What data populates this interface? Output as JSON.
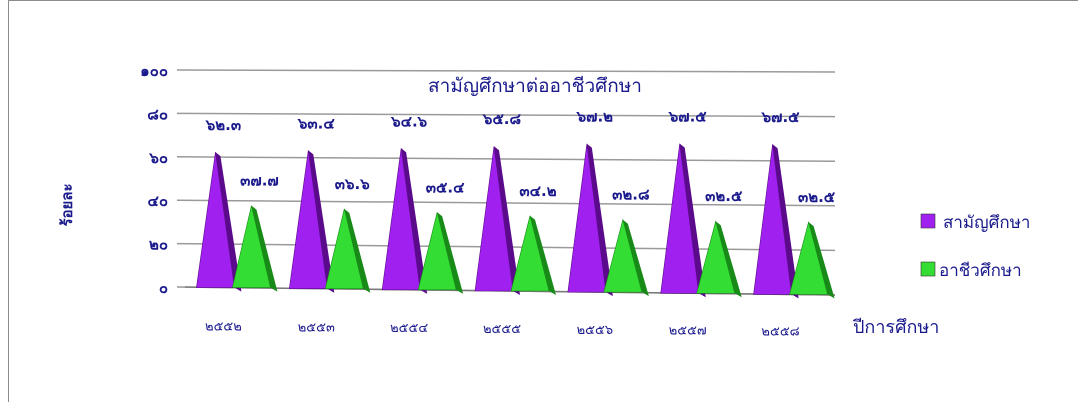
{
  "chart_data": {
    "type": "bar",
    "title": "สามัญศึกษาต่ออาชีวศึกษา",
    "xlabel": "ปีการศึกษา",
    "ylabel": "ร้อยละ",
    "ylim": [
      0,
      100
    ],
    "yticks": [
      {
        "value": 0,
        "label": "๐"
      },
      {
        "value": 20,
        "label": "๒๐"
      },
      {
        "value": 40,
        "label": "๔๐"
      },
      {
        "value": 60,
        "label": "๖๐"
      },
      {
        "value": 80,
        "label": "๘๐"
      },
      {
        "value": 100,
        "label": "๑๐๐"
      }
    ],
    "categories": [
      "๒๕๕๒",
      "๒๕๕๓",
      "๒๕๕๔",
      "๒๕๕๕",
      "๒๕๕๖",
      "๒๕๕๗",
      "๒๕๕๘"
    ],
    "series": [
      {
        "name": "สามัญศึกษา",
        "color": "#a020f0",
        "shade": "#5a0a8a",
        "values": [
          62.3,
          63.4,
          64.6,
          65.8,
          67.2,
          67.5,
          67.5
        ],
        "labels": [
          "๖๒.๓",
          "๖๓.๔",
          "๖๔.๖",
          "๖๕.๘",
          "๖๗.๒",
          "๖๗.๕",
          "๖๗.๕"
        ]
      },
      {
        "name": "อาชีวศึกษา",
        "color": "#33dd33",
        "shade": "#178a17",
        "values": [
          37.7,
          36.6,
          35.4,
          34.2,
          32.8,
          32.5,
          32.5
        ],
        "labels": [
          "๓๗.๗",
          "๓๖.๖",
          "๓๕.๔",
          "๓๔.๒",
          "๓๒.๘",
          "๓๒.๕",
          "๓๒.๕"
        ]
      }
    ],
    "grid": true,
    "legend_position": "right"
  }
}
